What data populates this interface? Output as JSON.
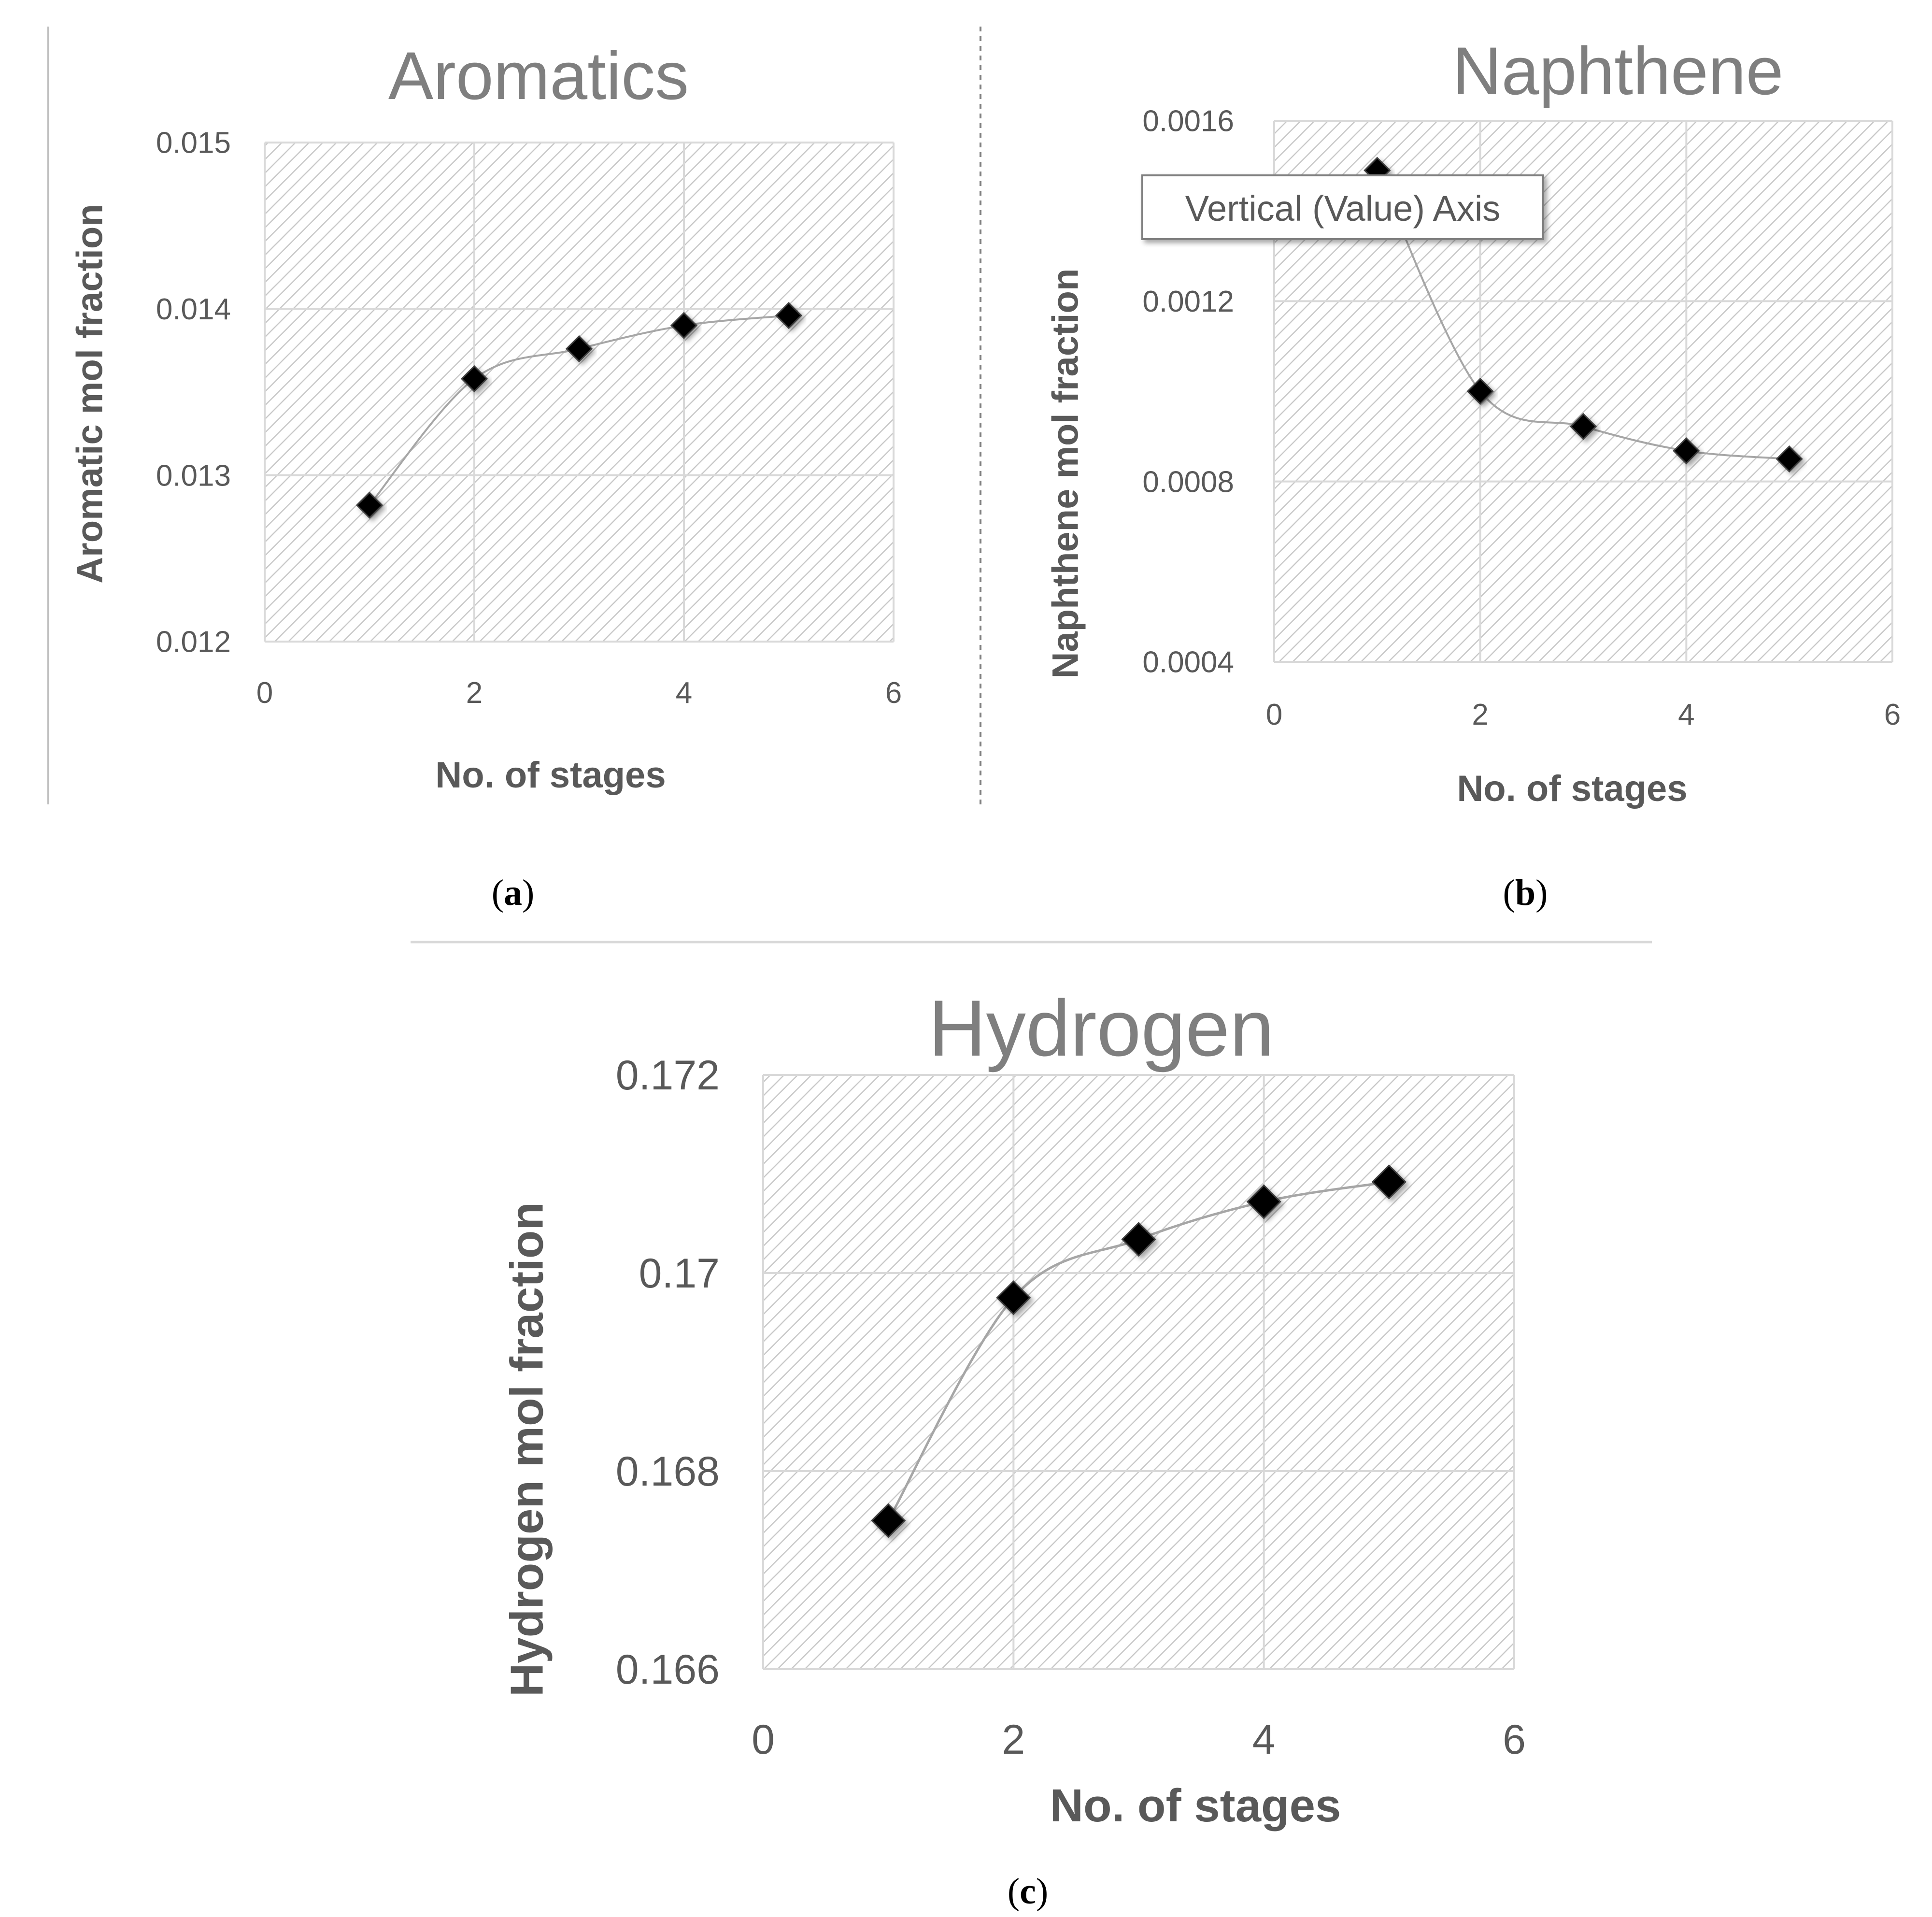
{
  "figure": {
    "captions": [
      {
        "open": "(",
        "letter": "a",
        "close": ")"
      },
      {
        "open": "(",
        "letter": "b",
        "close": ")"
      },
      {
        "open": "(",
        "letter": "c",
        "close": ")"
      }
    ],
    "tooltip": "Vertical (Value) Axis"
  },
  "colors": {
    "title": "#7f7f7f",
    "axis_label": "#595959",
    "tick_label": "#595959",
    "grid": "#d9d9d9",
    "hatch": "#c8c8c8",
    "line": "#a6a6a6",
    "marker": "#000000",
    "divider": "#7f7f7f"
  },
  "chart_data": [
    {
      "type": "line",
      "title": "Aromatics",
      "xlabel": "No. of stages",
      "ylabel": "Aromatic mol fraction",
      "x": [
        1,
        2,
        3,
        4,
        5
      ],
      "y": [
        0.01282,
        0.01358,
        0.01376,
        0.0139,
        0.01396
      ],
      "xlim": [
        0,
        6
      ],
      "ylim": [
        0.012,
        0.015
      ],
      "xticks": [
        0,
        2,
        4,
        6
      ],
      "xtick_labels": [
        "0",
        "2",
        "4",
        "6"
      ],
      "yticks": [
        0.012,
        0.013,
        0.014,
        0.015
      ],
      "ytick_labels": [
        "0.012",
        "0.013",
        "0.014",
        "0.015"
      ],
      "grid": true,
      "marker": "diamond",
      "smooth": true
    },
    {
      "type": "line",
      "title": "Naphthene",
      "xlabel": "No. of stages",
      "ylabel": "Naphthene mol fraction",
      "x": [
        1,
        2,
        3,
        4,
        5
      ],
      "y": [
        0.00149,
        0.001,
        0.000922,
        0.000868,
        0.00085
      ],
      "xlim": [
        0,
        6
      ],
      "ylim": [
        0.0004,
        0.0016
      ],
      "xticks": [
        0,
        2,
        4,
        6
      ],
      "xtick_labels": [
        "0",
        "2",
        "4",
        "6"
      ],
      "yticks": [
        0.0004,
        0.0008,
        0.0012,
        0.0016
      ],
      "ytick_labels": [
        "0.0004",
        "0.0008",
        "0.0012",
        "0.0016"
      ],
      "grid": true,
      "marker": "diamond",
      "smooth": true
    },
    {
      "type": "line",
      "title": "Hydrogen",
      "xlabel": "No. of stages",
      "ylabel": "Hydrogen mol fraction",
      "x": [
        1,
        2,
        3,
        4,
        5
      ],
      "y": [
        0.1675,
        0.16975,
        0.17034,
        0.17072,
        0.17092
      ],
      "xlim": [
        0,
        6
      ],
      "ylim": [
        0.166,
        0.172
      ],
      "xticks": [
        0,
        2,
        4,
        6
      ],
      "xtick_labels": [
        "0",
        "2",
        "4",
        "6"
      ],
      "yticks": [
        0.166,
        0.168,
        0.17,
        0.172
      ],
      "ytick_labels": [
        "0.166",
        "0.168",
        "0.17",
        "0.172"
      ],
      "grid": true,
      "marker": "diamond",
      "smooth": true
    }
  ]
}
